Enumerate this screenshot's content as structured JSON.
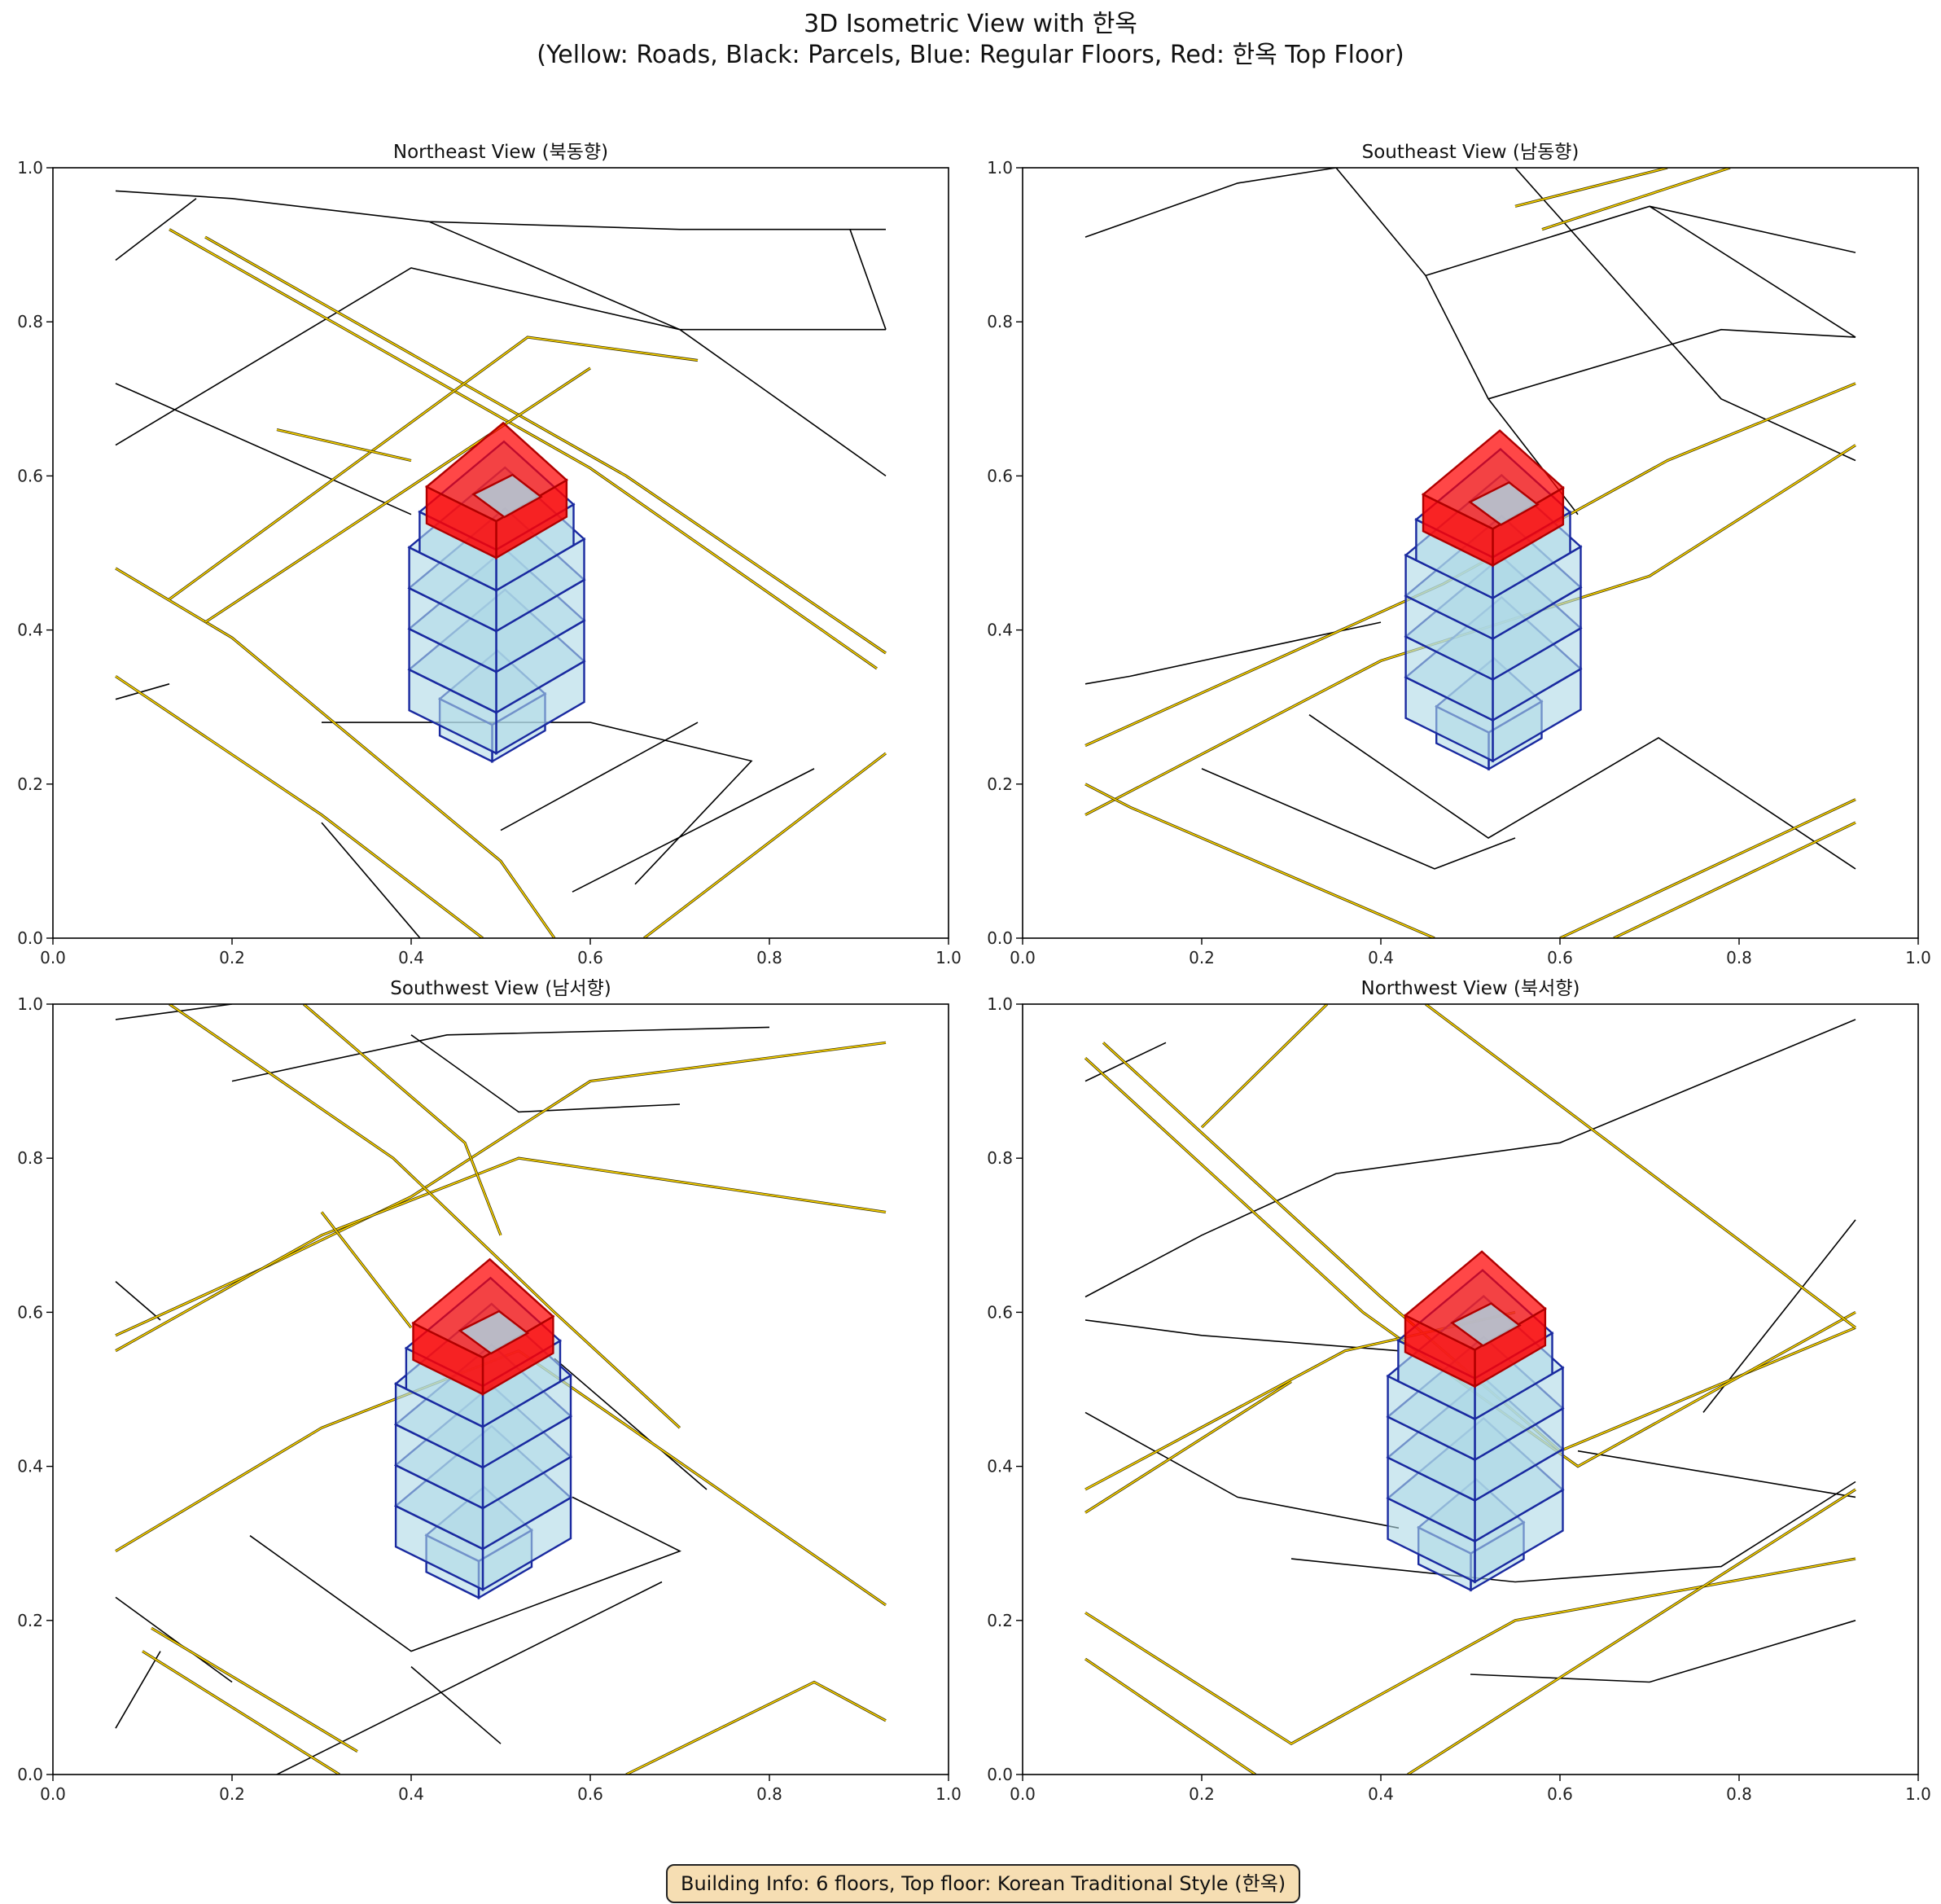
{
  "title": {
    "line1": "3D Isometric View with 한옥",
    "line2": "(Yellow: Roads, Black: Parcels, Blue: Regular Floors, Red: 한옥 Top Floor)"
  },
  "colors": {
    "road": "#ffd700",
    "road_edge": "#3b3200",
    "parcel": "#000000",
    "floor_fill": "#add8e6",
    "floor_edge": "#1a2aa0",
    "hanok_fill": "#ff0000",
    "hanok_edge": "#b00000",
    "info_bg": "#f6deb3"
  },
  "axes_ticks": [
    "0.0",
    "0.2",
    "0.4",
    "0.6",
    "0.8",
    "1.0"
  ],
  "panels": [
    {
      "title": "Northeast View (북동향)"
    },
    {
      "title": "Southeast View (남동향)"
    },
    {
      "title": "Southwest View (남서향)"
    },
    {
      "title": "Northwest View (북서향)"
    }
  ],
  "building": {
    "regular_floors": 5,
    "total_floors": 6,
    "top_floor_style": "한옥"
  },
  "info_box": "Building Info: 6 floors, Top floor: Korean Traditional Style (한옥)"
}
